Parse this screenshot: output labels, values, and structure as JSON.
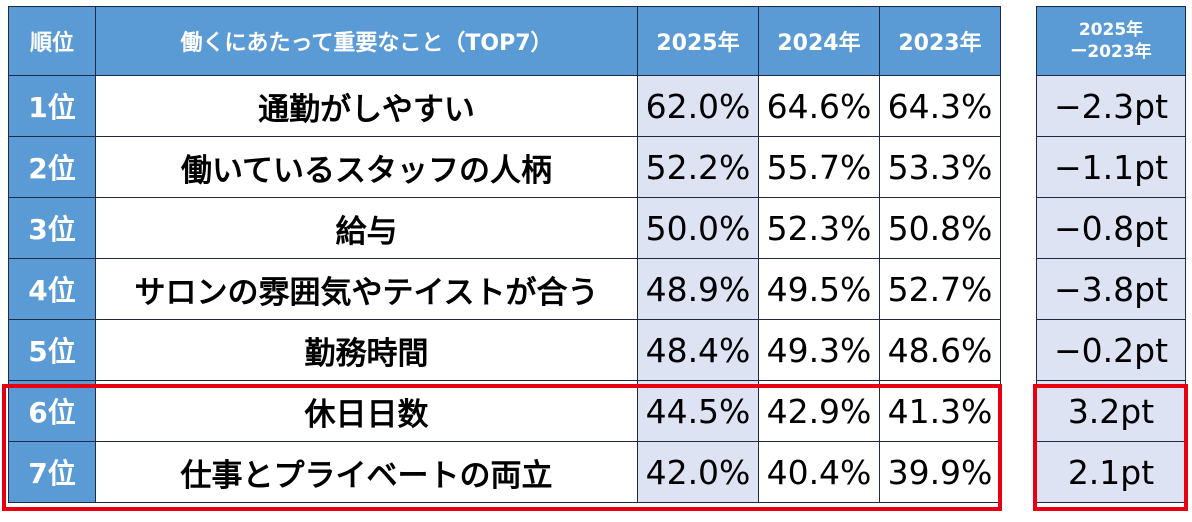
{
  "colors": {
    "header_bg": "#5b9bd5",
    "rank_bg": "#5b9bd5",
    "year2025_bg": "#dde3f3",
    "diff_bg": "#dde3f3",
    "highlight_border": "#e60012"
  },
  "headers": {
    "rank": "順位",
    "item": "働くにあたって重要なこと（TOP7）",
    "y2025": "2025年",
    "y2024": "2024年",
    "y2023": "2023年",
    "diff_line1": "2025年",
    "diff_line2": "ー2023年"
  },
  "rows": [
    {
      "rank": "1位",
      "item": "通勤がしやすい",
      "y2025": "62.0%",
      "y2024": "64.6%",
      "y2023": "64.3%",
      "diff": "−2.3pt"
    },
    {
      "rank": "2位",
      "item": "働いているスタッフの人柄",
      "y2025": "52.2%",
      "y2024": "55.7%",
      "y2023": "53.3%",
      "diff": "−1.1pt"
    },
    {
      "rank": "3位",
      "item": "給与",
      "y2025": "50.0%",
      "y2024": "52.3%",
      "y2023": "50.8%",
      "diff": "−0.8pt"
    },
    {
      "rank": "4位",
      "item": "サロンの雰囲気やテイストが合う",
      "y2025": "48.9%",
      "y2024": "49.5%",
      "y2023": "52.7%",
      "diff": "−3.8pt"
    },
    {
      "rank": "5位",
      "item": "勤務時間",
      "y2025": "48.4%",
      "y2024": "49.3%",
      "y2023": "48.6%",
      "diff": "−0.2pt"
    },
    {
      "rank": "6位",
      "item": "休日日数",
      "y2025": "44.5%",
      "y2024": "42.9%",
      "y2023": "41.3%",
      "diff": "3.2pt"
    },
    {
      "rank": "7位",
      "item": "仕事とプライベートの両立",
      "y2025": "42.0%",
      "y2024": "40.4%",
      "y2023": "39.9%",
      "diff": "2.1pt"
    }
  ],
  "highlighted_ranks": [
    "6位",
    "7位"
  ],
  "chart_data": {
    "type": "table",
    "columns": [
      "順位",
      "働くにあたって重要なこと（TOP7）",
      "2025年",
      "2024年",
      "2023年",
      "2025年ー2023年"
    ],
    "categories": [
      "通勤がしやすい",
      "働いているスタッフの人柄",
      "給与",
      "サロンの雰囲気やテイストが合う",
      "勤務時間",
      "休日日数",
      "仕事とプライベートの両立"
    ],
    "series": [
      {
        "name": "2025年",
        "values": [
          62.0,
          52.2,
          50.0,
          48.9,
          48.4,
          44.5,
          42.0
        ]
      },
      {
        "name": "2024年",
        "values": [
          64.6,
          55.7,
          52.3,
          49.5,
          49.3,
          42.9,
          40.4
        ]
      },
      {
        "name": "2023年",
        "values": [
          64.3,
          53.3,
          50.8,
          52.7,
          48.6,
          41.3,
          39.9
        ]
      },
      {
        "name": "2025年ー2023年",
        "values": [
          -2.3,
          -1.1,
          -0.8,
          -3.8,
          -0.2,
          3.2,
          2.1
        ]
      }
    ]
  }
}
